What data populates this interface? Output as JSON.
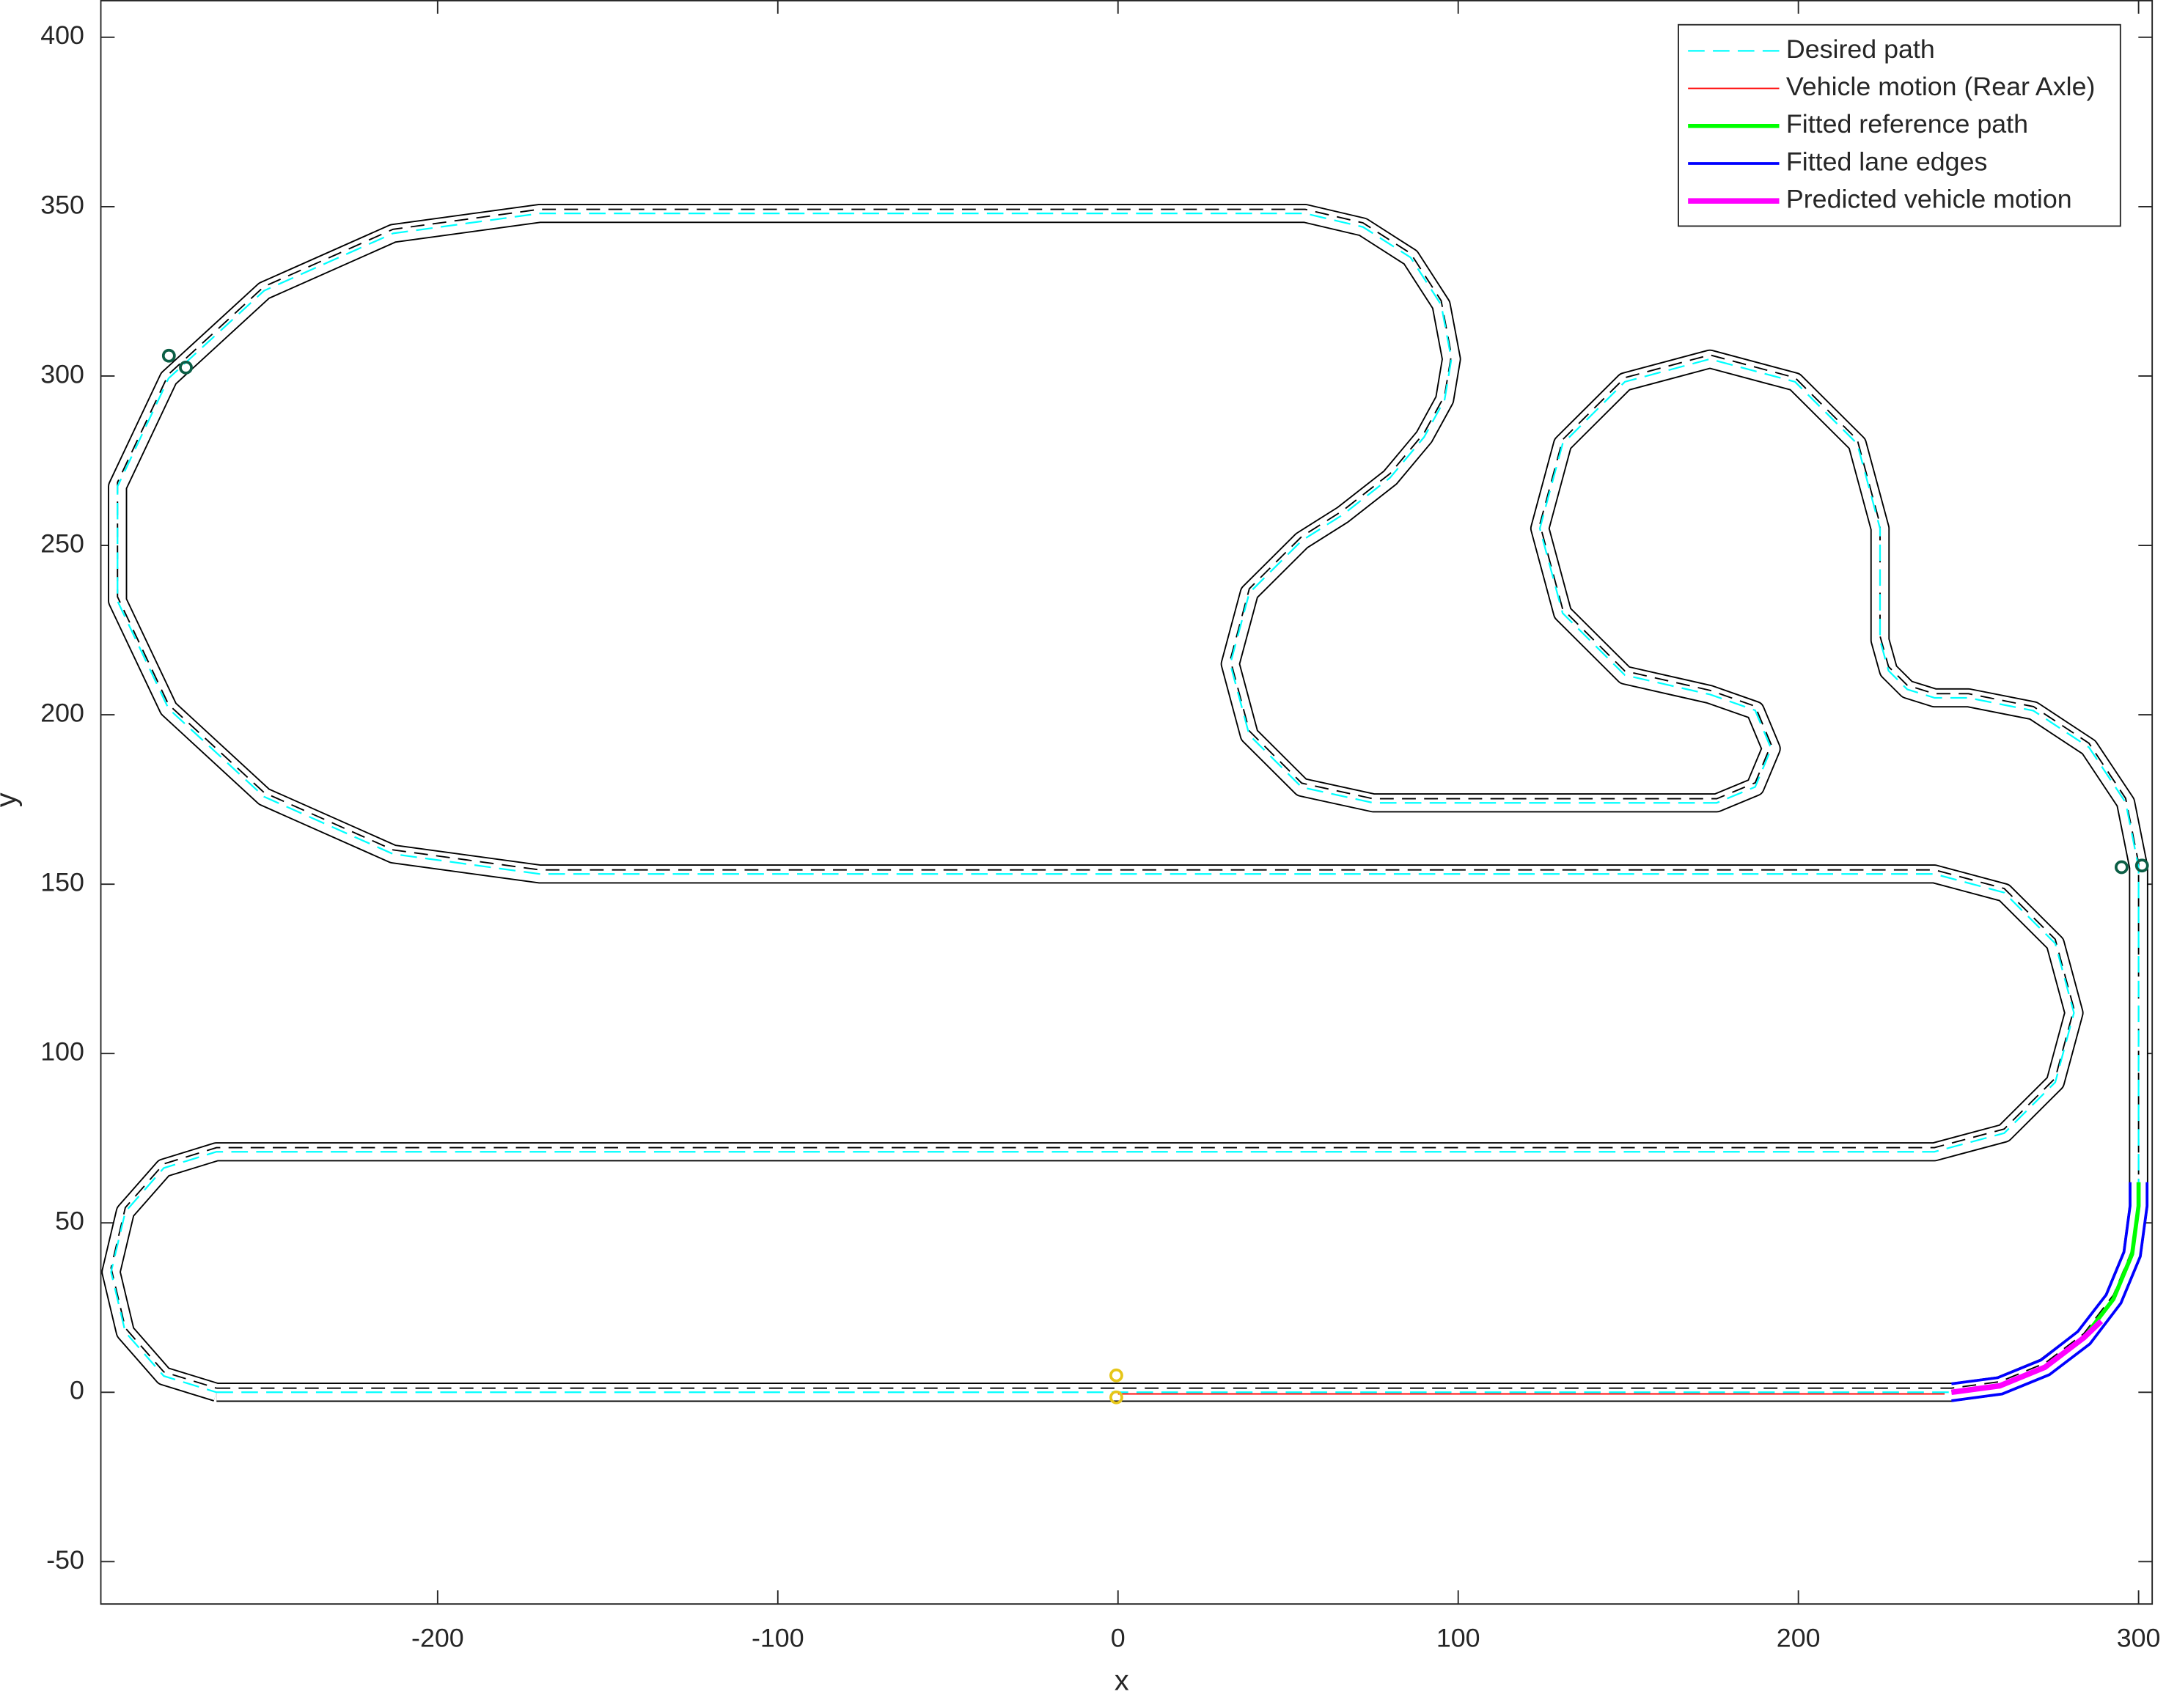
{
  "chart_data": {
    "type": "line",
    "xlabel": "x",
    "ylabel": "y",
    "xlim": [
      -299,
      304
    ],
    "ylim": [
      -62.5,
      411
    ],
    "xticks": [
      -200,
      -100,
      0,
      100,
      200,
      300
    ],
    "yticks": [
      -50,
      0,
      50,
      100,
      150,
      200,
      250,
      300,
      350,
      400
    ],
    "legend": "upper right",
    "series": [
      {
        "name": "Desired path",
        "color": "#00ffff",
        "style": "dashed",
        "road": true,
        "lines": [
          {
            "x": [
              -265,
              245,
              259.2,
              272.5,
              283.9,
              292.6,
              298.1,
              300,
              300,
              296.2,
              285.4,
              269.1,
              250,
              240,
              232,
              226.5,
              224,
              224,
              217.3,
              199,
              174,
              149,
              130.7,
              124,
              130.7,
              149,
              174,
              187.3,
              192,
              187.3,
              176,
              75,
              54,
              38.6,
              33,
              38.6,
              54,
              66,
              80,
              90,
              96,
              98,
              95,
              86,
              72,
              55,
              -170,
              -213.1,
              -251,
              -279.1,
              -294.1,
              -294.1,
              -279.1,
              -251,
              -213.1,
              -170,
              240,
              260.5,
              275.5,
              281,
              275.5,
              260.5,
              240,
              -265,
              -280.5,
              -291.8,
              -296,
              -291.8,
              -280.5,
              -265
            ],
            "y": [
              0,
              0,
              1.9,
              7.4,
              16.1,
              27.5,
              40.8,
              55,
              155,
              174.1,
              190.4,
              201.2,
              205,
              205,
              207.5,
              213,
              222,
              255,
              280,
              298.3,
              305,
              298.3,
              280,
              255,
              230,
              211.7,
              206,
              201.3,
              190,
              178.7,
              174,
              174,
              178.6,
              194,
              215,
              236,
              251.4,
              259,
              270,
              282,
              293,
              305,
              321,
              335,
              344,
              348,
              348,
              342.1,
              325.2,
              299.3,
              267.4,
              233.6,
              201.8,
              175.8,
              158.9,
              153,
              153,
              147.5,
              132.5,
              112,
              91.5,
              76.5,
              71,
              71,
              66.2,
              53.3,
              35.5,
              17.75,
              4.8,
              0
            ]
          }
        ]
      },
      {
        "name": "Vehicle motion (Rear Axle)",
        "color": "#ff0000",
        "style": "solid",
        "width": 1,
        "lines": [
          {
            "x": [
              0,
              243
            ],
            "y": [
              -0.5,
              -0.5
            ]
          }
        ]
      },
      {
        "name": "Fitted reference path",
        "color": "#00ff00",
        "style": "solid",
        "width": 3,
        "lines": [
          {
            "x": [
              245,
              259.2,
              272.5,
              283.9,
              292.6,
              298.1,
              300,
              300
            ],
            "y": [
              0,
              1.9,
              7.4,
              16.1,
              27.5,
              40.8,
              55,
              62
            ]
          }
        ]
      },
      {
        "name": "Fitted lane edges",
        "color": "#0000ff",
        "style": "solid",
        "width": 2,
        "lines": [
          {
            "x": [
              245,
              258.6,
              271.3,
              282.1,
              290.5,
              295.7,
              297.5,
              297.5
            ],
            "y": [
              2.5,
              4.3,
              9.5,
              17.9,
              28.8,
              41.4,
              55,
              62
            ]
          },
          {
            "x": [
              245,
              259.9,
              273.8,
              285.7,
              294.8,
              300.5,
              302.5,
              302.5
            ],
            "y": [
              -2.5,
              -0.5,
              5.2,
              14.3,
              26.3,
              40.1,
              55,
              62
            ]
          }
        ]
      },
      {
        "name": "Predicted vehicle motion",
        "color": "#ff00ff",
        "style": "solid",
        "width": 4,
        "lines": [
          {
            "x": [
              245,
              259.2,
              272.5,
              283.9,
              289
            ],
            "y": [
              0,
              1.9,
              7.4,
              16.1,
              21
            ]
          }
        ]
      }
    ],
    "markers": [
      {
        "color": "#e6c619",
        "x": [
          -0.5,
          -0.5
        ],
        "y": [
          5,
          -1.5
        ]
      },
      {
        "color": "#0b5e45",
        "x": [
          -279,
          -274,
          295,
          301
        ],
        "y": [
          306,
          302.5,
          155,
          155.5
        ]
      }
    ]
  }
}
